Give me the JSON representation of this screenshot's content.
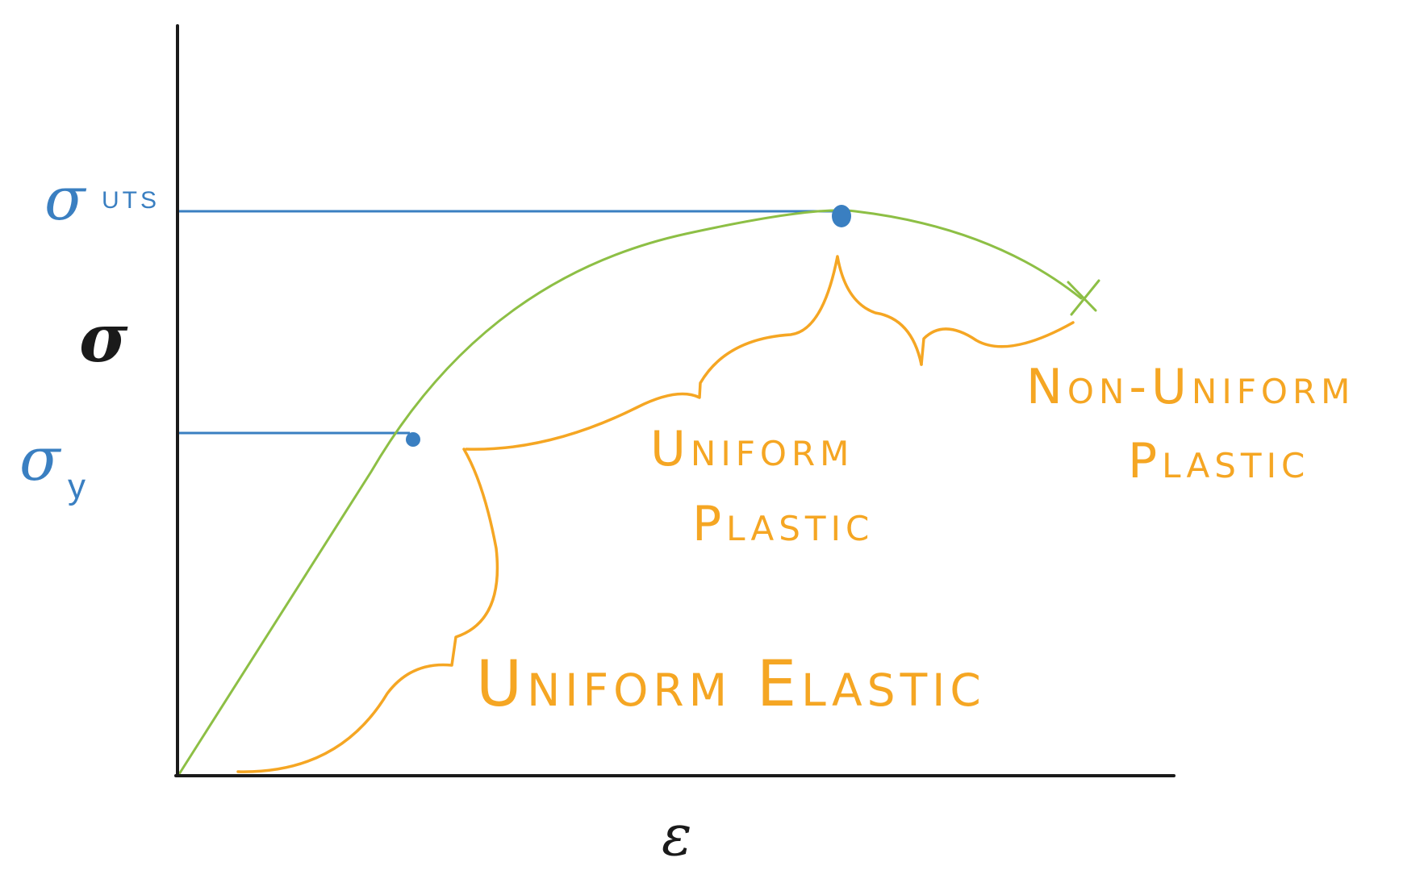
{
  "colors": {
    "axis": "#1a1a1a",
    "guide": "#3a7fc1",
    "curve": "#8dbf45",
    "brace": "#f5a623"
  },
  "axes": {
    "y_label": "σ",
    "x_label": "ε"
  },
  "markers": {
    "uts": {
      "symbol": "σ",
      "subscript": "UTS"
    },
    "yield": {
      "symbol": "σ",
      "subscript": "y"
    }
  },
  "regions": {
    "uniform_elastic": "Uniform Elastic",
    "uniform_plastic_line1": "Uniform",
    "uniform_plastic_line2": "Plastic",
    "nonuniform_plastic_line1": "Non-Uniform",
    "nonuniform_plastic_line2": "Plastic"
  }
}
